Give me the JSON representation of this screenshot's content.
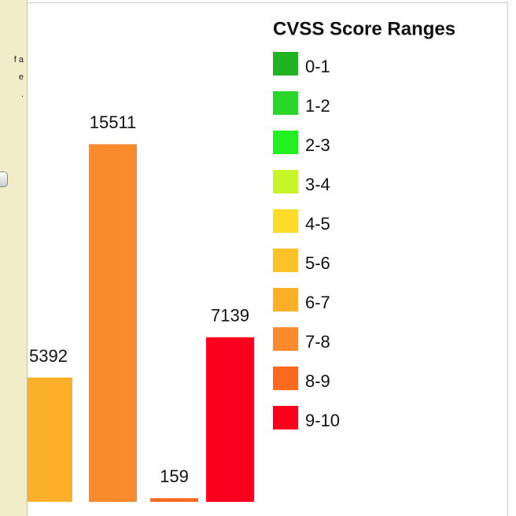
{
  "panel": {
    "texts": [
      "f a",
      "e",
      "."
    ]
  },
  "chart_data": {
    "type": "bar",
    "values": [
      5392,
      15511,
      159,
      7139
    ],
    "colors": [
      "#fcb02a",
      "#f98b2c",
      "#fa6a1e",
      "#fa001e"
    ],
    "ylim": [
      0,
      16000
    ],
    "legend_title": "CVSS Score Ranges",
    "legend": [
      {
        "label": "0-1",
        "color": "#22b322"
      },
      {
        "label": "1-2",
        "color": "#2ad62a"
      },
      {
        "label": "2-3",
        "color": "#22f022"
      },
      {
        "label": "3-4",
        "color": "#c8f52a"
      },
      {
        "label": "4-5",
        "color": "#fddb2a"
      },
      {
        "label": "5-6",
        "color": "#fcc22a"
      },
      {
        "label": "6-7",
        "color": "#fcb02a"
      },
      {
        "label": "7-8",
        "color": "#f98b2c"
      },
      {
        "label": "8-9",
        "color": "#fa6a1e"
      },
      {
        "label": "9-10",
        "color": "#fa001e"
      }
    ]
  }
}
